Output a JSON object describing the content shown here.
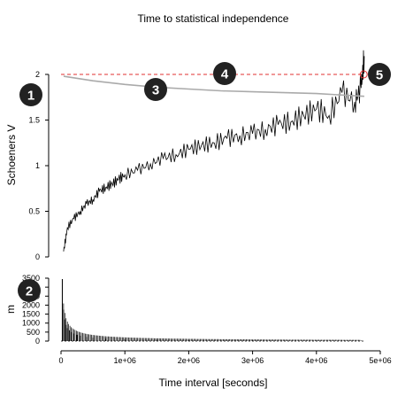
{
  "chart_data": {
    "type": "line",
    "title": "Time to statistical independence",
    "xlabel": "Time interval [seconds]",
    "xlim": [
      0,
      5000000
    ],
    "x_ticks": [
      0,
      1000000,
      2000000,
      3000000,
      4000000,
      5000000
    ],
    "x_tick_labels": [
      "0",
      "1e+06",
      "2e+06",
      "3e+06",
      "4e+06",
      "5e+06"
    ],
    "top_panel": {
      "ylabel": "Schoeners V",
      "ylim": [
        0,
        2.1
      ],
      "y_ticks": [
        0,
        0.5,
        1,
        1.5,
        2
      ],
      "y_tick_labels": [
        "0",
        "0.5",
        "1",
        "1.5",
        "2"
      ],
      "threshold": 2,
      "crossing_point": {
        "x": 4740000,
        "y": 2.0
      },
      "series": [
        {
          "role": "schoeners-v",
          "color": "#000000",
          "x": [
            40000,
            100000,
            200000,
            300000,
            400000,
            500000,
            600000,
            700000,
            800000,
            900000,
            1000000,
            1200000,
            1400000,
            1600000,
            1800000,
            2000000,
            2200000,
            2400000,
            2600000,
            2800000,
            3000000,
            3200000,
            3400000,
            3600000,
            3800000,
            4000000,
            4200000,
            4400000,
            4600000,
            4700000,
            4750000
          ],
          "y": [
            0.06,
            0.32,
            0.42,
            0.5,
            0.58,
            0.63,
            0.72,
            0.76,
            0.8,
            0.85,
            0.9,
            0.95,
            1.02,
            1.08,
            1.12,
            1.18,
            1.22,
            1.25,
            1.3,
            1.33,
            1.35,
            1.4,
            1.45,
            1.48,
            1.55,
            1.62,
            1.55,
            1.8,
            1.7,
            1.85,
            2.2
          ]
        },
        {
          "role": "reference-curve",
          "color": "#aaaaaa",
          "x": [
            40000,
            500000,
            1000000,
            1500000,
            2000000,
            2500000,
            3000000,
            3500000,
            4000000,
            4500000,
            4750000
          ],
          "y": [
            1.98,
            1.93,
            1.89,
            1.86,
            1.84,
            1.82,
            1.81,
            1.8,
            1.79,
            1.77,
            1.76
          ]
        }
      ]
    },
    "bottom_panel": {
      "type": "bar",
      "ylabel": "m",
      "ylim": [
        0,
        3500
      ],
      "y_ticks": [
        0,
        500,
        1000,
        1500,
        2000,
        2500,
        3000,
        3500
      ],
      "y_tick_labels": [
        "0",
        "500",
        "1000",
        "1500",
        "2000",
        "2500",
        "3000",
        "3500"
      ],
      "x": [
        20000,
        40000,
        60000,
        80000,
        100000,
        130000,
        160000,
        200000,
        250000,
        300000,
        400000,
        500000,
        700000,
        1000000,
        1500000,
        2000000,
        3000000,
        4000000,
        4700000
      ],
      "values": [
        3450,
        1750,
        1200,
        900,
        720,
        600,
        500,
        420,
        350,
        300,
        230,
        190,
        140,
        100,
        70,
        55,
        40,
        30,
        25
      ]
    }
  },
  "markers": [
    {
      "num": "1",
      "color": "#222222"
    },
    {
      "num": "2",
      "color": "#222222"
    },
    {
      "num": "3",
      "color": "#222222"
    },
    {
      "num": "4",
      "color": "#222222"
    },
    {
      "num": "5",
      "color": "#222222"
    }
  ],
  "colors": {
    "threshold": "#e03030",
    "crossing": "#e03030",
    "markers": "#222222"
  }
}
